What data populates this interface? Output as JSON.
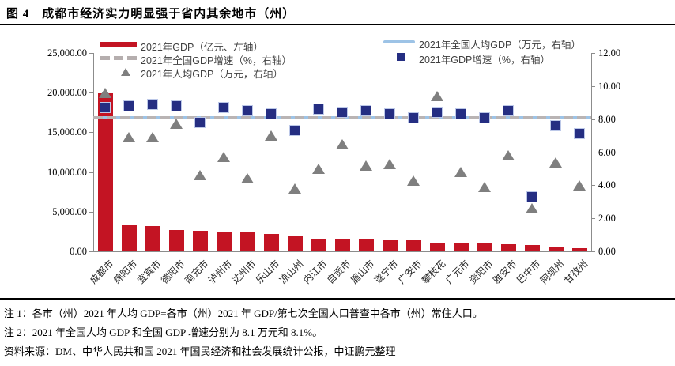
{
  "title": "图 4　成都市经济实力明显强于省内其余地市（州）",
  "legend": {
    "gdp_bar": "2021年GDP（亿元、左轴）",
    "national_growth": "2021年全国GDP增速（%，右轴）",
    "per_capita": "2021年人均GDP（万元，右轴）",
    "national_per_capita": "2021年全国人均GDP（万元，右轴）",
    "gdp_growth": "2021年GDP增速（%，右轴）"
  },
  "notes": {
    "note1": "注 1：各市（州）2021 年人均 GDP=各市（州）2021 年 GDP/第七次全国人口普查中各市（州）常住人口。",
    "note2": "注 2：2021 年全国人均 GDP 和全国 GDP 增速分别为 8.1 万元和 8.1%。",
    "source": "资料来源：DM、中华人民共和国 2021 年国民经济和社会发展统计公报，中证鹏元整理"
  },
  "colors": {
    "bar": "#C31423",
    "square": "#252E82",
    "square_border": "#BCC8E8",
    "triangle": "#7F7F7F",
    "national_per_capita_line": "#9DC3E6",
    "national_growth_dash": "#B9B4B4",
    "axis": "#8C8C8C"
  },
  "chart_data": {
    "type": "bar",
    "title": "图 4　成都市经济实力明显强于省内其余地市（州）",
    "categories": [
      "成都市",
      "绵阳市",
      "宜宾市",
      "德阳市",
      "南充市",
      "泸州市",
      "达州市",
      "乐山市",
      "凉山州",
      "内江市",
      "自贡市",
      "眉山市",
      "遂宁市",
      "广安市",
      "攀枝花",
      "广元市",
      "资阳市",
      "雅安市",
      "巴中市",
      "阿坝州",
      "甘孜州"
    ],
    "series": [
      {
        "name": "2021年GDP（亿元、左轴）",
        "type": "bar",
        "axis": "left",
        "values": [
          19917,
          3350,
          3148,
          2657,
          2602,
          2406,
          2352,
          2205,
          1901,
          1606,
          1601,
          1548,
          1541,
          1418,
          1134,
          1133,
          947,
          903,
          760,
          472,
          441
        ]
      },
      {
        "name": "2021年GDP增速（%，右轴）",
        "type": "scatter-square",
        "axis": "right",
        "values": [
          8.7,
          8.8,
          8.9,
          8.8,
          7.8,
          8.7,
          8.5,
          8.3,
          7.3,
          8.6,
          8.4,
          8.5,
          8.3,
          8.1,
          8.4,
          8.3,
          8.1,
          8.5,
          3.3,
          7.6,
          7.1
        ]
      },
      {
        "name": "2021年人均GDP（万元，右轴）",
        "type": "scatter-triangle",
        "axis": "right",
        "values": [
          9.6,
          6.9,
          6.9,
          7.7,
          4.6,
          5.7,
          4.4,
          7.0,
          3.8,
          5.0,
          6.5,
          5.2,
          5.3,
          4.3,
          9.4,
          4.8,
          3.9,
          5.8,
          2.6,
          5.4,
          4.0
        ]
      },
      {
        "name": "2021年全国人均GDP（万元，右轴）",
        "type": "hline",
        "axis": "right",
        "value": 8.1
      },
      {
        "name": "2021年全国GDP增速（%，右轴）",
        "type": "hline-dashed",
        "axis": "right",
        "value": 8.1
      }
    ],
    "left_axis": {
      "min": 0,
      "max": 25000,
      "step": 5000,
      "labels": [
        "0.00",
        "5,000.00",
        "10,000.00",
        "15,000.00",
        "20,000.00",
        "25,000.00"
      ]
    },
    "right_axis": {
      "min": 0,
      "max": 12,
      "step": 2,
      "labels": [
        "0.00",
        "2.00",
        "4.00",
        "6.00",
        "8.00",
        "10.00",
        "12.00"
      ]
    },
    "grid": false,
    "legend_position": "top"
  }
}
